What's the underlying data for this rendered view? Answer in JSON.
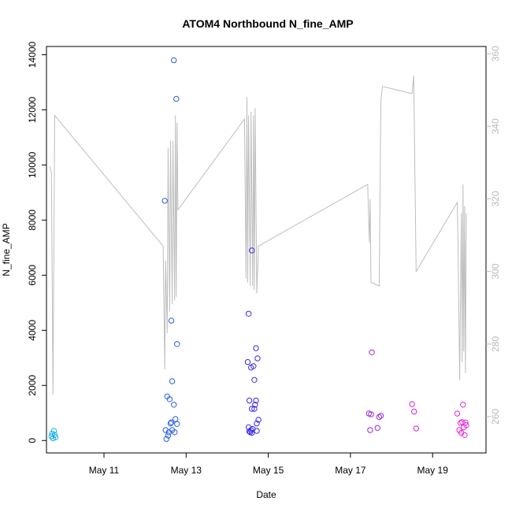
{
  "chart_data": {
    "type": "scatter",
    "title": "ATOM4 Northbound N_fine_AMP",
    "xlabel": "Date",
    "ylabel": "N_fine_AMP",
    "x_unit": "days (May)",
    "xlim": [
      9.6,
      20.3
    ],
    "ylim": [
      -450,
      14300
    ],
    "x_ticks": [
      {
        "value": 11,
        "label": "May 11"
      },
      {
        "value": 13,
        "label": "May 13"
      },
      {
        "value": 15,
        "label": "May 15"
      },
      {
        "value": 17,
        "label": "May 17"
      },
      {
        "value": 19,
        "label": "May 19"
      }
    ],
    "y_ticks": [
      0,
      2000,
      4000,
      6000,
      8000,
      10000,
      12000,
      14000
    ],
    "y2lim": [
      250,
      362
    ],
    "y2_ticks": [
      260,
      280,
      300,
      320,
      340,
      360
    ],
    "colors": {
      "line": "#bdbdbd",
      "right_axis": "#b8b8b8",
      "point_day10": "#1ab0e8",
      "point_day12": "#2a5fe8",
      "point_day14": "#3a2ce8",
      "point_day17": "#9a28e0",
      "point_day18": "#c828d8",
      "point_day19": "#e828d8"
    },
    "series": [
      {
        "type": "scatter",
        "axis": "left",
        "color": "#1ab0e8",
        "points": [
          [
            9.72,
            150
          ],
          [
            9.74,
            250
          ],
          [
            9.76,
            80
          ],
          [
            9.78,
            350
          ],
          [
            9.8,
            200
          ],
          [
            9.82,
            120
          ]
        ]
      },
      {
        "type": "scatter",
        "axis": "left",
        "color": "#2a5fe8",
        "points": [
          [
            12.48,
            8700
          ],
          [
            12.5,
            380
          ],
          [
            12.52,
            60
          ],
          [
            12.54,
            1600
          ],
          [
            12.56,
            180
          ],
          [
            12.58,
            300
          ],
          [
            12.6,
            1500
          ],
          [
            12.62,
            620
          ],
          [
            12.64,
            4350
          ],
          [
            12.64,
            660
          ],
          [
            12.66,
            2150
          ],
          [
            12.66,
            380
          ],
          [
            12.7,
            13800
          ],
          [
            12.7,
            1300
          ],
          [
            12.72,
            300
          ],
          [
            12.74,
            780
          ],
          [
            12.76,
            12400
          ],
          [
            12.78,
            3500
          ],
          [
            12.78,
            600
          ]
        ]
      },
      {
        "type": "scatter",
        "axis": "left",
        "color": "#3a2ce8",
        "points": [
          [
            14.5,
            2850
          ],
          [
            14.52,
            4600
          ],
          [
            14.52,
            480
          ],
          [
            14.54,
            1450
          ],
          [
            14.54,
            330
          ],
          [
            14.56,
            300
          ],
          [
            14.58,
            2650
          ],
          [
            14.6,
            6900
          ],
          [
            14.6,
            1150
          ],
          [
            14.62,
            420
          ],
          [
            14.64,
            2700
          ],
          [
            14.66,
            2200
          ],
          [
            14.66,
            1150
          ],
          [
            14.68,
            1300
          ],
          [
            14.7,
            1450
          ],
          [
            14.7,
            3350
          ],
          [
            14.72,
            620
          ],
          [
            14.72,
            350
          ],
          [
            14.74,
            2980
          ],
          [
            14.76,
            750
          ],
          [
            14.6,
            280
          ],
          [
            14.58,
            380
          ]
        ]
      },
      {
        "type": "scatter",
        "axis": "left",
        "color": "#9a28e0",
        "points": [
          [
            17.45,
            980
          ],
          [
            17.48,
            380
          ],
          [
            17.5,
            950
          ],
          [
            17.52,
            3200
          ],
          [
            17.66,
            460
          ],
          [
            17.7,
            850
          ],
          [
            17.74,
            900
          ]
        ]
      },
      {
        "type": "scatter",
        "axis": "left",
        "color": "#c828d8",
        "points": [
          [
            18.5,
            1320
          ],
          [
            18.55,
            1050
          ],
          [
            18.6,
            440
          ]
        ]
      },
      {
        "type": "scatter",
        "axis": "left",
        "color": "#e828d8",
        "points": [
          [
            19.6,
            980
          ],
          [
            19.65,
            380
          ],
          [
            19.68,
            640
          ],
          [
            19.7,
            280
          ],
          [
            19.72,
            670
          ],
          [
            19.74,
            1300
          ],
          [
            19.76,
            480
          ],
          [
            19.78,
            200
          ],
          [
            19.8,
            650
          ],
          [
            19.82,
            560
          ]
        ]
      },
      {
        "type": "line",
        "axis": "right",
        "color": "#bdbdbd",
        "points": [
          [
            9.68,
            329
          ],
          [
            9.72,
            327
          ],
          [
            9.76,
            266
          ],
          [
            9.8,
            343
          ],
          [
            12.44,
            307
          ],
          [
            12.48,
            273
          ],
          [
            12.5,
            303
          ],
          [
            12.54,
            283
          ],
          [
            12.56,
            334
          ],
          [
            12.6,
            289
          ],
          [
            12.62,
            336
          ],
          [
            12.66,
            291
          ],
          [
            12.68,
            336
          ],
          [
            12.72,
            292
          ],
          [
            12.74,
            343
          ],
          [
            12.76,
            293
          ],
          [
            12.78,
            341
          ],
          [
            12.8,
            317
          ],
          [
            14.42,
            342
          ],
          [
            14.46,
            298
          ],
          [
            14.48,
            348
          ],
          [
            14.5,
            297
          ],
          [
            14.52,
            343
          ],
          [
            14.56,
            296
          ],
          [
            14.58,
            344
          ],
          [
            14.62,
            296
          ],
          [
            14.64,
            343
          ],
          [
            14.66,
            295
          ],
          [
            14.68,
            345
          ],
          [
            14.72,
            294
          ],
          [
            14.76,
            307
          ],
          [
            17.42,
            324
          ],
          [
            17.46,
            308
          ],
          [
            17.48,
            320
          ],
          [
            17.5,
            297
          ],
          [
            17.7,
            296
          ],
          [
            17.74,
            347
          ],
          [
            17.78,
            351
          ],
          [
            18.5,
            349
          ],
          [
            18.54,
            354
          ],
          [
            18.6,
            300
          ],
          [
            19.6,
            319
          ],
          [
            19.62,
            308
          ],
          [
            19.66,
            270
          ],
          [
            19.7,
            316
          ],
          [
            19.72,
            275
          ],
          [
            19.74,
            324
          ],
          [
            19.76,
            278
          ],
          [
            19.78,
            318
          ],
          [
            19.8,
            272
          ],
          [
            19.82,
            316
          ]
        ]
      }
    ]
  }
}
